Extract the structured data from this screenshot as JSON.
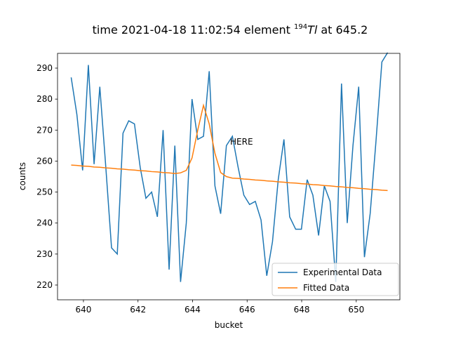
{
  "chart_data": {
    "type": "line",
    "title": {
      "prefix": "time 2021-04-18 11:02:54 element ",
      "isotope": "194",
      "element": "Tl",
      "suffix": " at 645.2"
    },
    "xlabel": "bucket",
    "ylabel": "counts",
    "annotation": "HERE",
    "annotation_color": "#ff0000",
    "x": [
      639.55,
      639.76,
      639.97,
      640.18,
      640.39,
      640.6,
      640.82,
      641.03,
      641.24,
      641.45,
      641.66,
      641.87,
      642.08,
      642.29,
      642.5,
      642.71,
      642.92,
      643.14,
      643.35,
      643.56,
      643.77,
      643.98,
      644.19,
      644.4,
      644.61,
      644.82,
      645.03,
      645.24,
      645.46,
      645.67,
      645.88,
      646.09,
      646.3,
      646.51,
      646.72,
      646.93,
      647.14,
      647.35,
      647.56,
      647.78,
      647.99,
      648.2,
      648.41,
      648.62,
      648.83,
      649.04,
      649.25,
      649.46,
      649.67,
      649.88,
      650.09,
      650.3,
      650.51,
      650.72,
      650.94,
      651.15
    ],
    "series": [
      {
        "name": "Experimental Data",
        "color": "#1f77b4",
        "values": [
          287,
          275,
          257,
          291,
          259,
          284,
          258,
          232,
          230,
          269,
          273,
          272,
          258,
          248,
          250,
          242,
          270,
          225,
          265,
          221,
          240,
          280,
          267,
          268,
          289,
          252,
          243,
          265,
          268,
          258,
          249,
          246,
          247,
          241,
          223,
          234,
          254,
          267,
          242,
          238,
          238,
          254,
          249,
          236,
          252,
          247,
          221,
          285,
          240,
          265,
          284,
          229,
          243,
          266,
          292,
          295
        ]
      },
      {
        "name": "Fitted Data",
        "color": "#ff7f0e",
        "values": [
          258.7,
          258.6,
          258.4,
          258.3,
          258.1,
          258.0,
          257.8,
          257.7,
          257.5,
          257.4,
          257.2,
          257.1,
          256.9,
          256.8,
          256.6,
          256.5,
          256.3,
          256.2,
          256.0,
          256.2,
          257.0,
          261.0,
          270.0,
          278.0,
          272.0,
          262.5,
          256.3,
          255.0,
          254.5,
          254.4,
          254.2,
          254.1,
          253.9,
          253.8,
          253.6,
          253.5,
          253.3,
          253.2,
          253.0,
          252.9,
          252.7,
          252.6,
          252.4,
          252.3,
          252.1,
          252.0,
          251.8,
          251.7,
          251.5,
          251.4,
          251.2,
          251.1,
          250.9,
          250.8,
          250.6,
          250.5
        ]
      }
    ],
    "xlim": [
      639.05,
      651.6
    ],
    "ylim": [
      215.24,
      294.76
    ],
    "xticks": [
      640,
      642,
      644,
      646,
      648,
      650
    ],
    "yticks": [
      220,
      230,
      240,
      250,
      260,
      270,
      280,
      290
    ],
    "grid": false,
    "legend": "lower right"
  }
}
